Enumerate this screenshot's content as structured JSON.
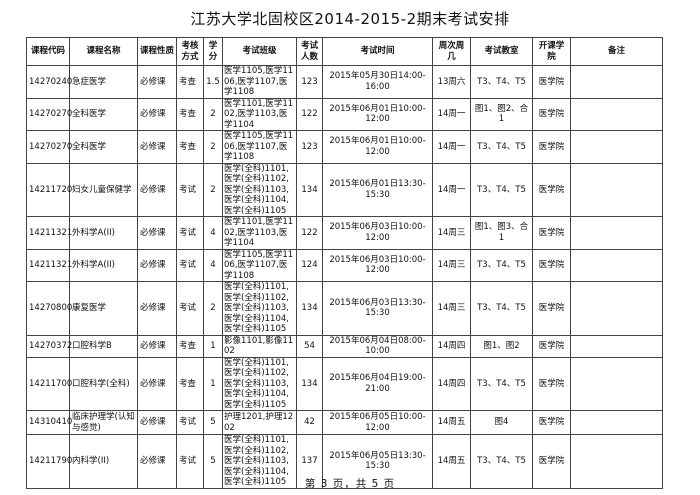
{
  "title": "江苏大学北固校区2014-2015-2期末考试安排",
  "headers": [
    "课程代码",
    "课程名称",
    "课程性质",
    "考核方式",
    "学分",
    "考试班级",
    "考试人数",
    "考试时间",
    "周次周几",
    "考试教室",
    "开课学院",
    "备注"
  ],
  "rows": [
    {
      "code": "14270240",
      "name": "急症医学",
      "type": "必修课",
      "method": "考查",
      "credit": "1.5",
      "classes": "医学1105,医学1106,医学1107,医学1108",
      "count": "123",
      "time": "2015年05月30日14:00-16:00",
      "week": "13周六",
      "room": "T3、T4、T5",
      "college": "医学院",
      "note": ""
    },
    {
      "code": "14270270",
      "name": "全科医学",
      "type": "必修课",
      "method": "考查",
      "credit": "2",
      "classes": "医学1101,医学1102,医学1103,医学1104",
      "count": "122",
      "time": "2015年06月01日10:00-12:00",
      "week": "14周一",
      "room": "图1、图2、合1",
      "college": "医学院",
      "note": ""
    },
    {
      "code": "14270270",
      "name": "全科医学",
      "type": "必修课",
      "method": "考查",
      "credit": "2",
      "classes": "医学1105,医学1106,医学1107,医学1108",
      "count": "123",
      "time": "2015年06月01日10:00-12:00",
      "week": "14周一",
      "room": "T3、T4、T5",
      "college": "医学院",
      "note": ""
    },
    {
      "code": "14211720",
      "name": "妇女儿童保健学",
      "type": "必修课",
      "method": "考试",
      "credit": "2",
      "classes": "医学(全科)1101,医学(全科)1102,医学(全科)1103,医学(全科)1104,医学(全科)1105",
      "count": "134",
      "time": "2015年06月01日13:30-15:30",
      "week": "14周一",
      "room": "T3、T4、T5",
      "college": "医学院",
      "note": ""
    },
    {
      "code": "14211321",
      "name": "外科学A(II)",
      "type": "必修课",
      "method": "考试",
      "credit": "4",
      "classes": "医学1101,医学1102,医学1103,医学1104",
      "count": "122",
      "time": "2015年06月03日10:00-12:00",
      "week": "14周三",
      "room": "图1、图3、合1",
      "college": "医学院",
      "note": ""
    },
    {
      "code": "14211321",
      "name": "外科学A(II)",
      "type": "必修课",
      "method": "考试",
      "credit": "4",
      "classes": "医学1105,医学1106,医学1107,医学1108",
      "count": "124",
      "time": "2015年06月03日10:00-12:00",
      "week": "14周三",
      "room": "T3、T4、T5",
      "college": "医学院",
      "note": ""
    },
    {
      "code": "14270800",
      "name": "康复医学",
      "type": "必修课",
      "method": "考试",
      "credit": "2",
      "classes": "医学(全科)1101,医学(全科)1102,医学(全科)1103,医学(全科)1104,医学(全科)1105",
      "count": "134",
      "time": "2015年06月03日13:30-15:30",
      "week": "14周三",
      "room": "T3、T4、T5",
      "college": "医学院",
      "note": ""
    },
    {
      "code": "14270372",
      "name": "口腔科学B",
      "type": "必修课",
      "method": "考查",
      "credit": "1",
      "classes": "影像1101,影像1102",
      "count": "54",
      "time": "2015年06月04日08:00-10:00",
      "week": "14周四",
      "room": "图1、图2",
      "college": "医学院",
      "note": ""
    },
    {
      "code": "14211700",
      "name": "口腔科学(全科)",
      "type": "必修课",
      "method": "考查",
      "credit": "1",
      "classes": "医学(全科)1101,医学(全科)1102,医学(全科)1103,医学(全科)1104,医学(全科)1105",
      "count": "134",
      "time": "2015年06月04日19:00-21:00",
      "week": "14周四",
      "room": "T3、T4、T5",
      "college": "医学院",
      "note": ""
    },
    {
      "code": "14310410",
      "name": "临床护理学(认知与感觉)",
      "type": "必修课",
      "method": "考试",
      "credit": "5",
      "classes": "护理1201,护理1202",
      "count": "42",
      "time": "2015年06月05日10:00-12:00",
      "week": "14周五",
      "room": "图4",
      "college": "医学院",
      "note": ""
    },
    {
      "code": "14211790",
      "name": "内科学(II)",
      "type": "必修课",
      "method": "考试",
      "credit": "5",
      "classes": "医学(全科)1101,医学(全科)1102,医学(全科)1103,医学(全科)1104,医学(全科)1105",
      "count": "137",
      "time": "2015年06月05日13:30-15:30",
      "week": "14周五",
      "room": "T3、T4、T5",
      "college": "医学院",
      "note": ""
    }
  ],
  "footer": "第 3 页，共 5 页"
}
